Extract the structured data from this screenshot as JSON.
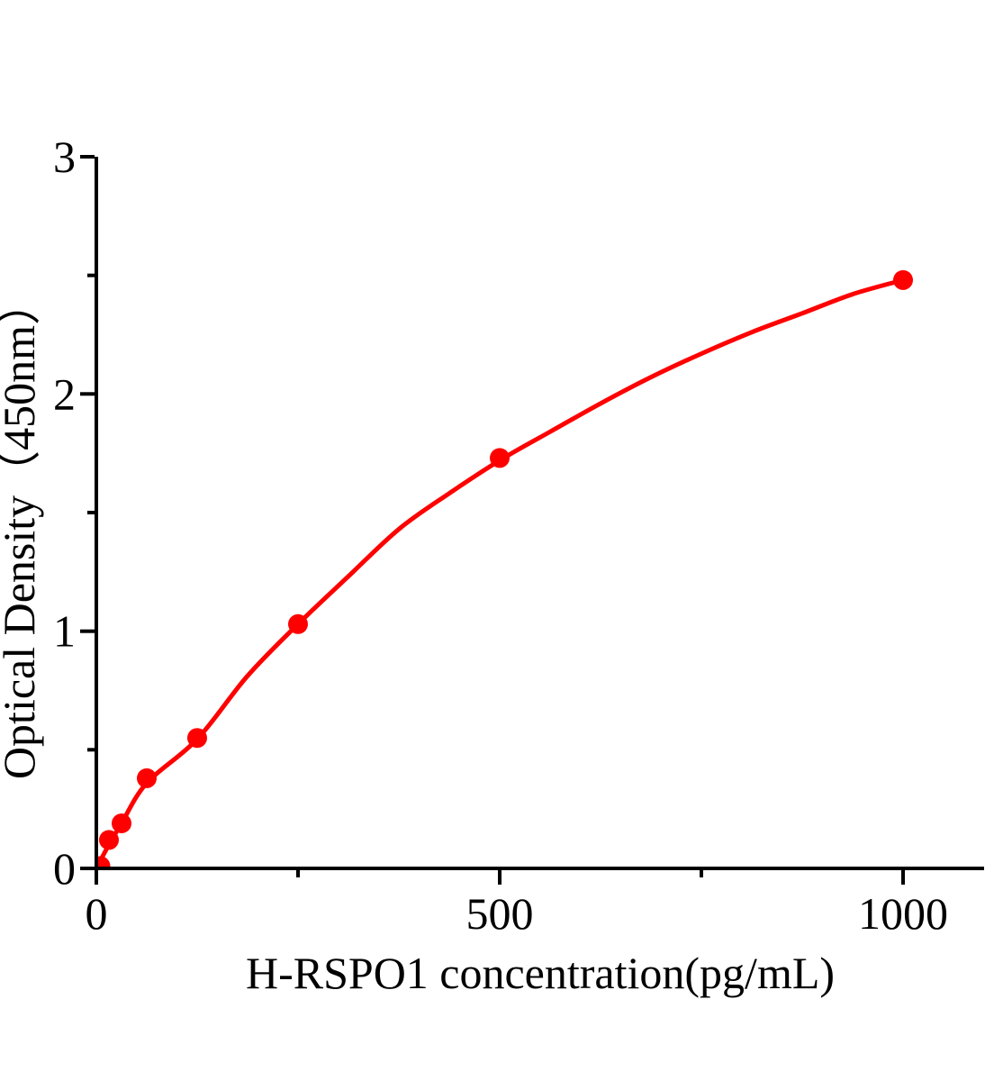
{
  "page": {
    "background_color": "#ffffff"
  },
  "chart_data": {
    "type": "scatter",
    "subtype": "elisa-standard-curve-with-fit-line",
    "title": "",
    "xlabel": "H-RSPO1 concentration(pg/mL)",
    "ylabel": "Optical Density（450nm）",
    "xlim": [
      0,
      1000
    ],
    "ylim": [
      0,
      3
    ],
    "grid": false,
    "legend": "none",
    "x_axis": {
      "ticks_major": [
        0,
        500,
        1000
      ],
      "tick_labels": [
        "0",
        "500",
        "1000"
      ],
      "ticks_minor": [
        250,
        750
      ]
    },
    "y_axis": {
      "ticks_major": [
        0,
        1,
        2,
        3
      ],
      "tick_labels": [
        "0",
        "1",
        "2",
        "3"
      ],
      "ticks_minor": [
        0.5,
        1.5,
        2.5
      ]
    },
    "colors": {
      "curve": "#ff0000",
      "marker": "#ff0000",
      "axis": "#000000",
      "text": "#000000"
    },
    "points": [
      {
        "x": 5,
        "y": 0.01
      },
      {
        "x": 15.6,
        "y": 0.12
      },
      {
        "x": 31.2,
        "y": 0.19
      },
      {
        "x": 62.5,
        "y": 0.38
      },
      {
        "x": 125,
        "y": 0.55
      },
      {
        "x": 250,
        "y": 1.03
      },
      {
        "x": 500,
        "y": 1.73
      },
      {
        "x": 1000,
        "y": 2.48
      }
    ],
    "fit_curve": [
      [
        0,
        0.0
      ],
      [
        15.6,
        0.1
      ],
      [
        31.2,
        0.19
      ],
      [
        62.5,
        0.36
      ],
      [
        125,
        0.545
      ],
      [
        187,
        0.81
      ],
      [
        250,
        1.03
      ],
      [
        312,
        1.23
      ],
      [
        375,
        1.43
      ],
      [
        437,
        1.58
      ],
      [
        500,
        1.72
      ],
      [
        562,
        1.84
      ],
      [
        625,
        1.96
      ],
      [
        687,
        2.07
      ],
      [
        750,
        2.17
      ],
      [
        812,
        2.26
      ],
      [
        875,
        2.34
      ],
      [
        937,
        2.42
      ],
      [
        1000,
        2.48
      ]
    ]
  }
}
